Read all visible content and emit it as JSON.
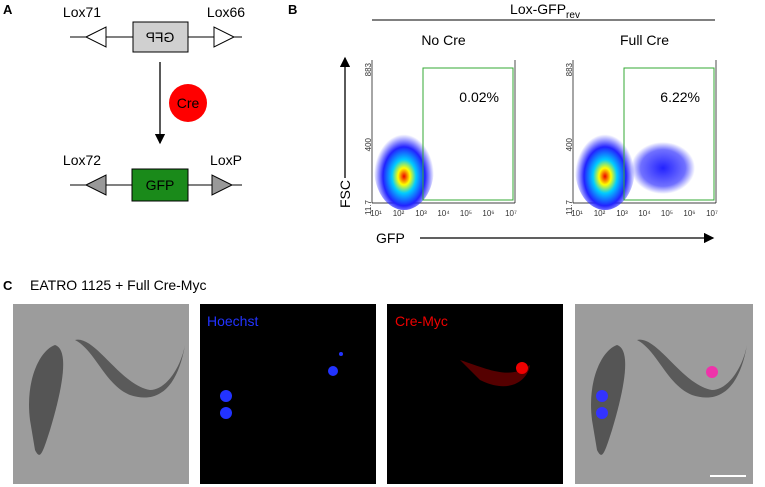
{
  "panel_a": {
    "label": "A",
    "top": {
      "left_site": "Lox71",
      "gene": "GFP",
      "right_site": "Lox66"
    },
    "enzyme": "Cre",
    "bottom": {
      "left_site": "Lox72",
      "gene": "GFP",
      "right_site": "LoxP"
    }
  },
  "panel_b": {
    "label": "B",
    "title": "Lox-GFP",
    "title_sub": "rev",
    "y_axis": "FSC",
    "x_axis": "GFP",
    "plots": [
      {
        "title": "No Cre",
        "gate": "0.02%"
      },
      {
        "title": "Full Cre",
        "gate": "6.22%"
      }
    ],
    "yticks": [
      "883",
      "400",
      "11.7"
    ],
    "xticks": [
      "10¹",
      "10²",
      "10³",
      "10⁴",
      "10⁵",
      "10⁶",
      "10⁷"
    ]
  },
  "panel_c": {
    "label": "C",
    "title": "EATRO 1125 + Full Cre-Myc",
    "channels": [
      "Hoechst",
      "Cre-Myc"
    ]
  }
}
